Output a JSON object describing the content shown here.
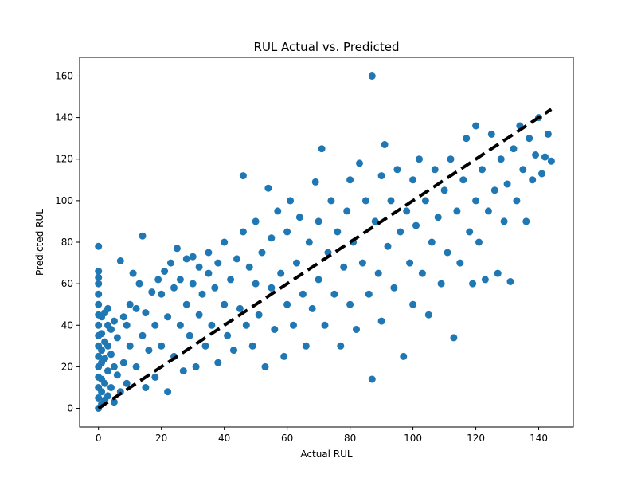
{
  "chart_data": {
    "type": "scatter",
    "title": "RUL Actual vs. Predicted",
    "xlabel": "Actual RUL",
    "ylabel": "Predicted RUL",
    "xlim": [
      -6,
      151
    ],
    "ylim": [
      -9,
      169
    ],
    "xticks": [
      0,
      20,
      40,
      60,
      80,
      100,
      120,
      140
    ],
    "yticks": [
      0,
      20,
      40,
      60,
      80,
      100,
      120,
      140,
      160
    ],
    "grid": false,
    "point_color": "#1f77b4",
    "reference_line": {
      "x": [
        0,
        144
      ],
      "y": [
        0,
        144
      ],
      "style": "dashed",
      "color": "#000000"
    },
    "points_summary": "Several thousand points clustered around y = x; spread grows with Actual RUL; heavy concentration near x = 0 with predictions up to ~78.",
    "points": [
      [
        0,
        0
      ],
      [
        0,
        5
      ],
      [
        0,
        10
      ],
      [
        0,
        15
      ],
      [
        0,
        20
      ],
      [
        0,
        25
      ],
      [
        0,
        30
      ],
      [
        0,
        35
      ],
      [
        0,
        40
      ],
      [
        0,
        45
      ],
      [
        0,
        50
      ],
      [
        0,
        55
      ],
      [
        0,
        60
      ],
      [
        0,
        63
      ],
      [
        0,
        66
      ],
      [
        0,
        78
      ],
      [
        1,
        2
      ],
      [
        1,
        8
      ],
      [
        1,
        14
      ],
      [
        1,
        22
      ],
      [
        1,
        28
      ],
      [
        1,
        36
      ],
      [
        1,
        44
      ],
      [
        2,
        4
      ],
      [
        2,
        12
      ],
      [
        2,
        24
      ],
      [
        2,
        32
      ],
      [
        2,
        46
      ],
      [
        3,
        6
      ],
      [
        3,
        18
      ],
      [
        3,
        30
      ],
      [
        3,
        40
      ],
      [
        3,
        48
      ],
      [
        4,
        10
      ],
      [
        4,
        26
      ],
      [
        4,
        38
      ],
      [
        5,
        3
      ],
      [
        5,
        20
      ],
      [
        5,
        42
      ],
      [
        6,
        16
      ],
      [
        6,
        34
      ],
      [
        7,
        71
      ],
      [
        7,
        8
      ],
      [
        8,
        22
      ],
      [
        8,
        44
      ],
      [
        9,
        12
      ],
      [
        9,
        40
      ],
      [
        10,
        30
      ],
      [
        10,
        50
      ],
      [
        11,
        65
      ],
      [
        12,
        20
      ],
      [
        12,
        48
      ],
      [
        13,
        60
      ],
      [
        14,
        83
      ],
      [
        14,
        35
      ],
      [
        15,
        10
      ],
      [
        15,
        46
      ],
      [
        16,
        28
      ],
      [
        17,
        56
      ],
      [
        18,
        15
      ],
      [
        18,
        40
      ],
      [
        19,
        62
      ],
      [
        20,
        30
      ],
      [
        20,
        55
      ],
      [
        21,
        66
      ],
      [
        22,
        8
      ],
      [
        22,
        44
      ],
      [
        23,
        70
      ],
      [
        24,
        25
      ],
      [
        24,
        58
      ],
      [
        25,
        77
      ],
      [
        26,
        40
      ],
      [
        26,
        62
      ],
      [
        27,
        18
      ],
      [
        28,
        50
      ],
      [
        28,
        72
      ],
      [
        29,
        35
      ],
      [
        30,
        60
      ],
      [
        30,
        73
      ],
      [
        31,
        20
      ],
      [
        32,
        45
      ],
      [
        32,
        68
      ],
      [
        33,
        55
      ],
      [
        34,
        30
      ],
      [
        35,
        65
      ],
      [
        35,
        75
      ],
      [
        36,
        40
      ],
      [
        37,
        58
      ],
      [
        38,
        22
      ],
      [
        38,
        70
      ],
      [
        40,
        50
      ],
      [
        40,
        80
      ],
      [
        41,
        35
      ],
      [
        42,
        62
      ],
      [
        43,
        28
      ],
      [
        44,
        72
      ],
      [
        45,
        48
      ],
      [
        46,
        112
      ],
      [
        46,
        85
      ],
      [
        47,
        40
      ],
      [
        48,
        68
      ],
      [
        49,
        30
      ],
      [
        50,
        60
      ],
      [
        50,
        90
      ],
      [
        51,
        45
      ],
      [
        52,
        75
      ],
      [
        53,
        20
      ],
      [
        54,
        106
      ],
      [
        55,
        58
      ],
      [
        55,
        82
      ],
      [
        56,
        38
      ],
      [
        57,
        95
      ],
      [
        58,
        65
      ],
      [
        59,
        25
      ],
      [
        60,
        50
      ],
      [
        60,
        85
      ],
      [
        61,
        100
      ],
      [
        62,
        40
      ],
      [
        63,
        70
      ],
      [
        64,
        92
      ],
      [
        65,
        55
      ],
      [
        66,
        30
      ],
      [
        67,
        80
      ],
      [
        68,
        48
      ],
      [
        69,
        109
      ],
      [
        70,
        62
      ],
      [
        70,
        90
      ],
      [
        71,
        125
      ],
      [
        72,
        40
      ],
      [
        73,
        75
      ],
      [
        74,
        100
      ],
      [
        75,
        55
      ],
      [
        76,
        85
      ],
      [
        77,
        30
      ],
      [
        78,
        68
      ],
      [
        79,
        95
      ],
      [
        80,
        50
      ],
      [
        80,
        110
      ],
      [
        81,
        80
      ],
      [
        82,
        38
      ],
      [
        83,
        118
      ],
      [
        84,
        70
      ],
      [
        85,
        100
      ],
      [
        86,
        55
      ],
      [
        87,
        160
      ],
      [
        87,
        14
      ],
      [
        88,
        90
      ],
      [
        89,
        65
      ],
      [
        90,
        112
      ],
      [
        90,
        42
      ],
      [
        91,
        127
      ],
      [
        92,
        78
      ],
      [
        93,
        100
      ],
      [
        94,
        58
      ],
      [
        95,
        115
      ],
      [
        96,
        85
      ],
      [
        97,
        25
      ],
      [
        98,
        95
      ],
      [
        99,
        70
      ],
      [
        100,
        110
      ],
      [
        100,
        50
      ],
      [
        101,
        88
      ],
      [
        102,
        120
      ],
      [
        103,
        65
      ],
      [
        104,
        100
      ],
      [
        105,
        45
      ],
      [
        106,
        80
      ],
      [
        107,
        115
      ],
      [
        108,
        92
      ],
      [
        109,
        60
      ],
      [
        110,
        105
      ],
      [
        111,
        75
      ],
      [
        112,
        120
      ],
      [
        113,
        34
      ],
      [
        114,
        95
      ],
      [
        115,
        70
      ],
      [
        116,
        110
      ],
      [
        117,
        130
      ],
      [
        118,
        85
      ],
      [
        119,
        60
      ],
      [
        120,
        100
      ],
      [
        120,
        136
      ],
      [
        121,
        80
      ],
      [
        122,
        115
      ],
      [
        123,
        62
      ],
      [
        124,
        95
      ],
      [
        125,
        132
      ],
      [
        126,
        105
      ],
      [
        127,
        65
      ],
      [
        128,
        120
      ],
      [
        129,
        90
      ],
      [
        130,
        108
      ],
      [
        131,
        61
      ],
      [
        132,
        125
      ],
      [
        133,
        100
      ],
      [
        134,
        136
      ],
      [
        135,
        115
      ],
      [
        136,
        90
      ],
      [
        137,
        130
      ],
      [
        138,
        110
      ],
      [
        139,
        122
      ],
      [
        140,
        140
      ],
      [
        141,
        113
      ],
      [
        142,
        121
      ],
      [
        143,
        132
      ],
      [
        144,
        119
      ]
    ]
  }
}
